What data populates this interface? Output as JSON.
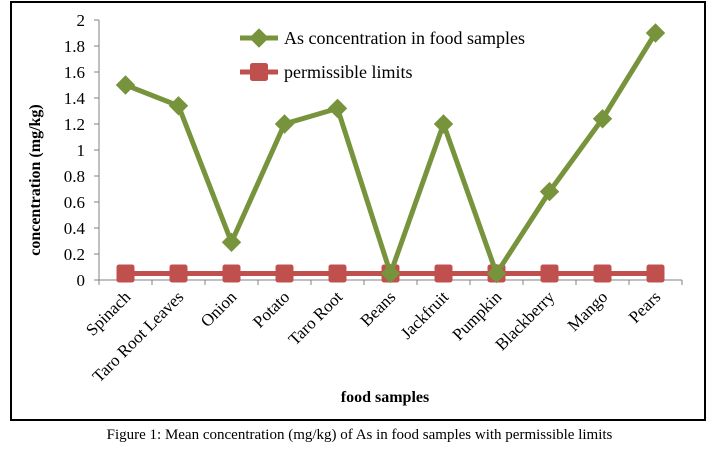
{
  "chart_data": {
    "type": "line",
    "categories": [
      "Spinach",
      "Taro Root Leaves",
      "Onion",
      "Potato",
      "Taro Root",
      "Beans",
      "Jackfruit",
      "Pumpkin",
      "Blackberry",
      "Mango",
      "Pears"
    ],
    "series": [
      {
        "name": "As concentration in food samples",
        "color": "#77933C",
        "marker": "diamond",
        "values": [
          1.5,
          1.34,
          0.29,
          1.2,
          1.32,
          0.05,
          1.2,
          0.05,
          0.68,
          1.24,
          1.9
        ]
      },
      {
        "name": "permissible limits",
        "color": "#C0504D",
        "marker": "square",
        "values": [
          0.05,
          0.05,
          0.05,
          0.05,
          0.05,
          0.05,
          0.05,
          0.05,
          0.05,
          0.05,
          0.05
        ]
      }
    ],
    "xlabel": "food samples",
    "ylabel": "concentration (mg/kg)",
    "ylim": [
      0,
      2
    ],
    "yticks": [
      "0",
      "0.2",
      "0.4",
      "0.6",
      "0.8",
      "1",
      "1.2",
      "1.4",
      "1.6",
      "1.8",
      "2"
    ],
    "grid": false,
    "legend": "top-right"
  },
  "caption": "Figure 1: Mean concentration (mg/kg) of As in food samples with permissible limits"
}
